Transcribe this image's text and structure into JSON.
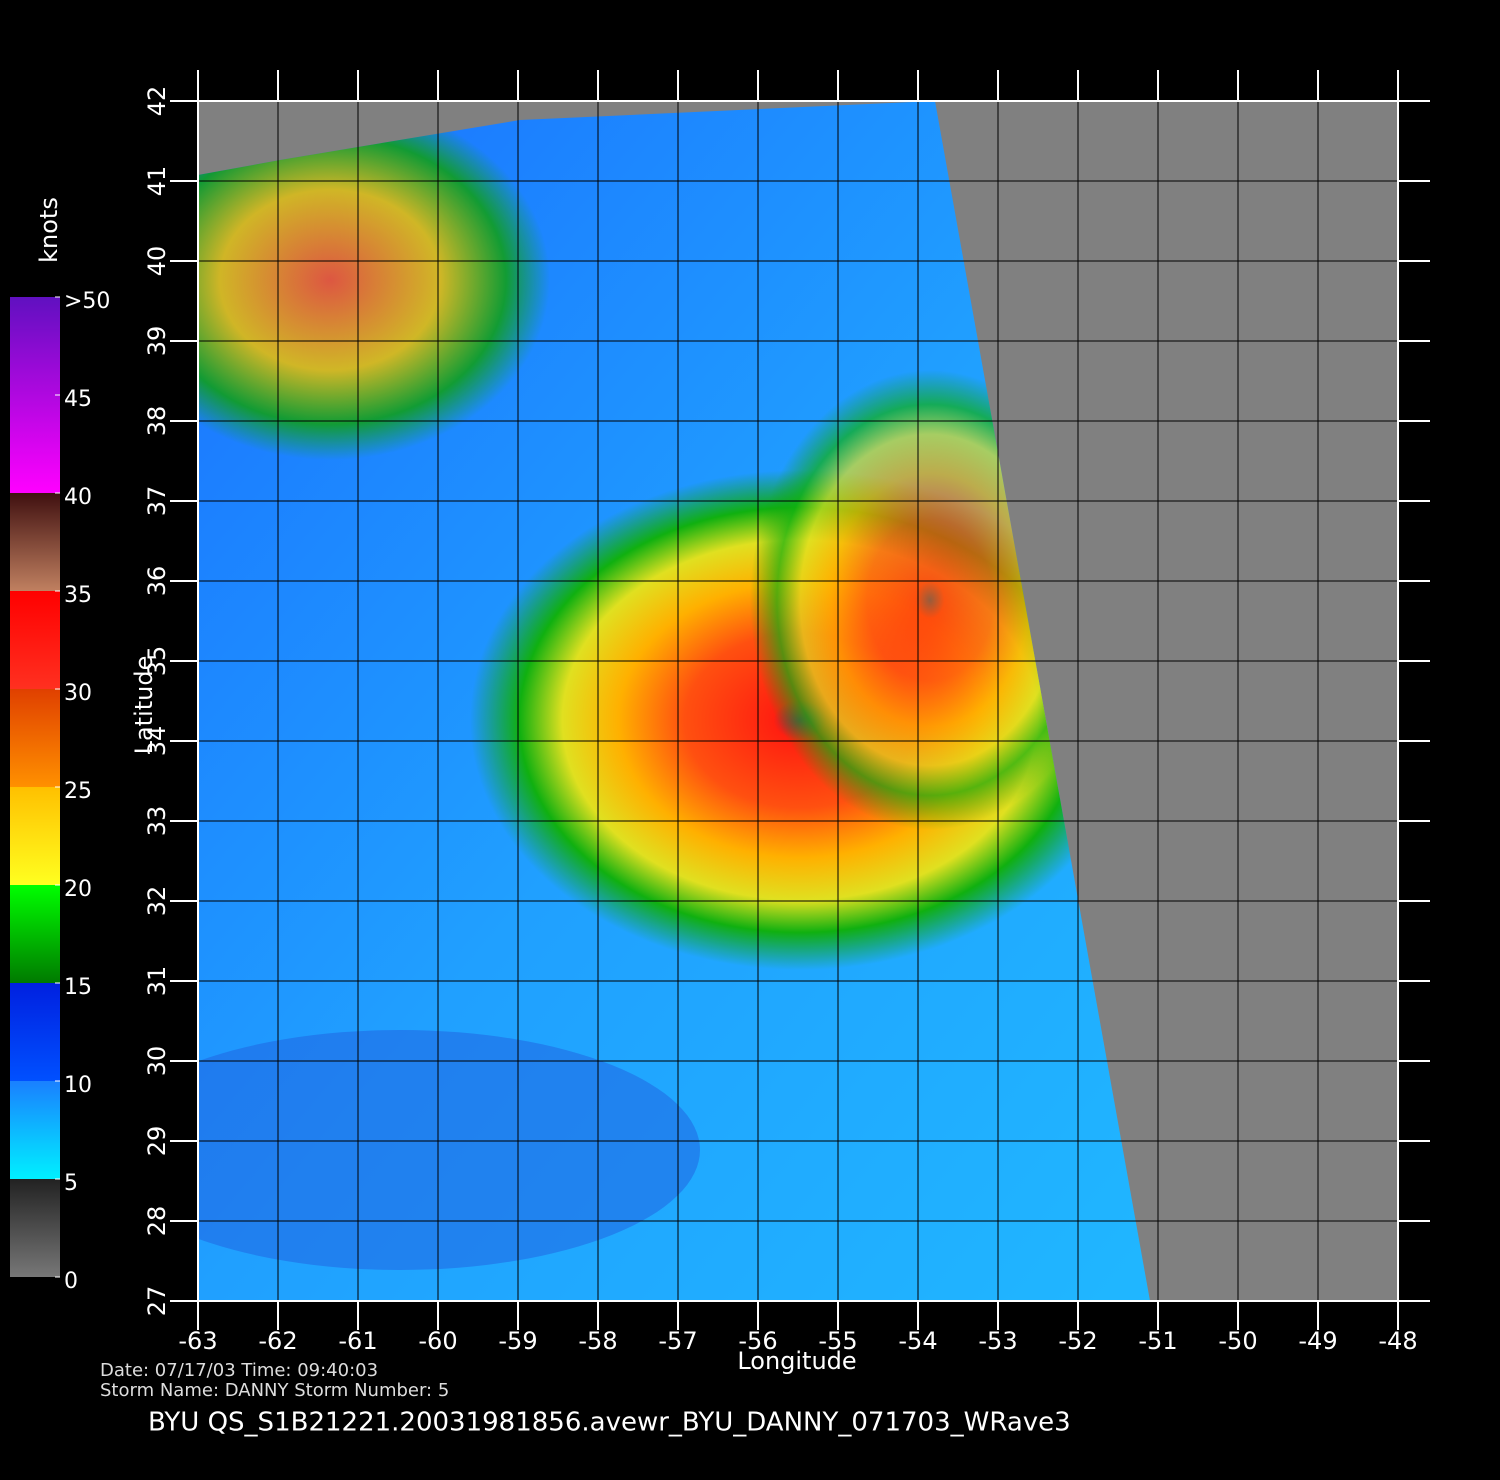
{
  "title": "BYU  QS_S1B21221.20031981856.avewr_BYU_DANNY_071703_WRave3",
  "date_line": "Date: 07/17/03   Time: 09:40:03",
  "storm_line": "Storm  Name: DANNY    Storm  Number: 5",
  "x_axis": {
    "label": "Longitude",
    "lim": [
      -63,
      -48
    ],
    "ticks": [
      -63,
      -62,
      -61,
      -60,
      -59,
      -58,
      -57,
      -56,
      -55,
      -54,
      -53,
      -52,
      -51,
      -50,
      -49,
      -48
    ]
  },
  "y_axis": {
    "label": "Latitude",
    "lim": [
      27,
      42
    ],
    "ticks": [
      27,
      28,
      29,
      30,
      31,
      32,
      33,
      34,
      35,
      36,
      37,
      38,
      39,
      40,
      41,
      42
    ]
  },
  "colorbar": {
    "label": "knots",
    "lim": [
      0,
      50
    ],
    "ticks": [
      0,
      5,
      10,
      15,
      20,
      25,
      30,
      35,
      40,
      45,
      {
        "value": 50,
        "label": ">50"
      }
    ]
  }
}
